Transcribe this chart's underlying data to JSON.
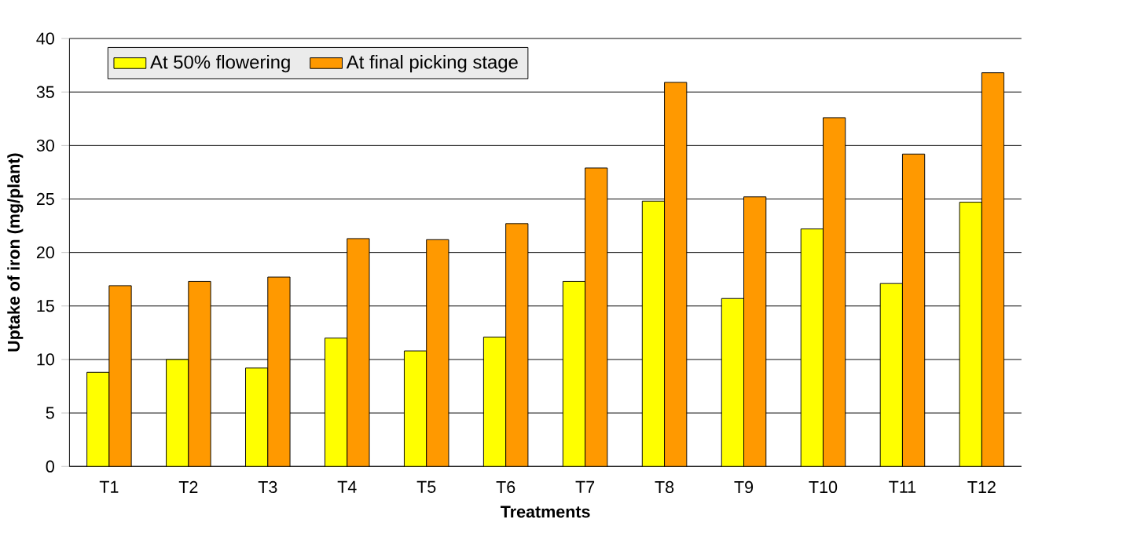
{
  "chart_data": {
    "type": "bar",
    "xlabel": "Treatments",
    "ylabel": "Uptake of iron (mg/plant)",
    "categories": [
      "T1",
      "T2",
      "T3",
      "T4",
      "T5",
      "T6",
      "T7",
      "T8",
      "T9",
      "T10",
      "T11",
      "T12"
    ],
    "series": [
      {
        "name": "At 50% flowering",
        "color": "#ffff00",
        "values": [
          8.8,
          10.0,
          9.2,
          12.0,
          10.8,
          12.1,
          17.3,
          24.8,
          15.7,
          22.2,
          17.1,
          24.7
        ]
      },
      {
        "name": "At final picking stage",
        "color": "#ff9900",
        "values": [
          16.9,
          17.3,
          17.7,
          21.3,
          21.2,
          22.7,
          27.9,
          35.9,
          25.2,
          32.6,
          29.2,
          36.8
        ]
      }
    ],
    "ylim": [
      0,
      40
    ],
    "yticks": [
      0,
      5,
      10,
      15,
      20,
      25,
      30,
      35,
      40
    ],
    "grid": "y",
    "legend": "top left"
  }
}
